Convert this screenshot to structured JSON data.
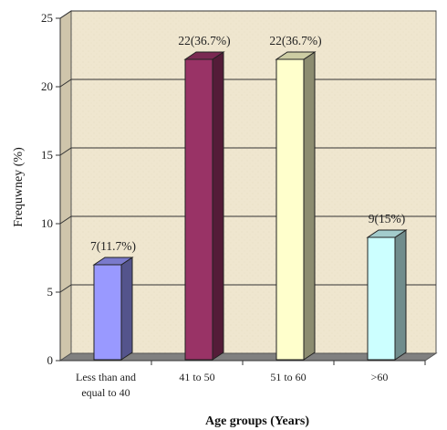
{
  "chart_data": {
    "type": "bar",
    "categories": [
      "Less than and\nequal to 40",
      "41 to 50",
      "51 to 60",
      ">60"
    ],
    "values": [
      7,
      22,
      22,
      9
    ],
    "data_labels": [
      "7(11.7%)",
      "22(36.7%)",
      "22(36.7%)",
      "9(15%)"
    ],
    "colors": [
      "#9999ff",
      "#993366",
      "#ffffcc",
      "#ccffff"
    ],
    "title": "",
    "xlabel": "Age groups (Years)",
    "ylabel": "Frequwney (%)",
    "ylim": [
      0,
      25
    ],
    "yticks": [
      0,
      5,
      10,
      15,
      20,
      25
    ],
    "grid": true,
    "style": "3d",
    "background": "#efe6cf"
  }
}
